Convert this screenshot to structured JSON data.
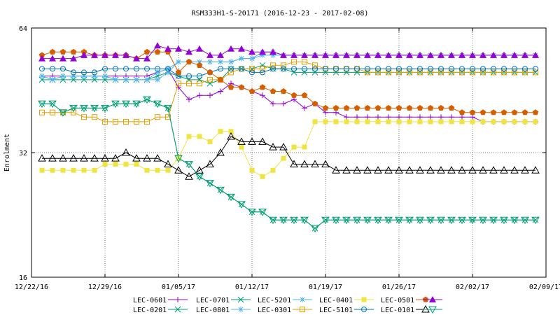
{
  "chart_data": {
    "type": "line",
    "title": "RSM333H1-S-20171 (2016-12-23 - 2017-02-08)",
    "ylabel": "Enrolment",
    "xlabel": "",
    "y_scale": "log2",
    "ylim": [
      16,
      64
    ],
    "y_ticks": [
      16,
      32,
      64
    ],
    "xlim": [
      "2016-12-22",
      "2017-02-09"
    ],
    "x_ticks": [
      "12/22/16",
      "12/29/16",
      "01/05/17",
      "01/12/17",
      "01/19/17",
      "01/26/17",
      "02/02/17",
      "02/09/17"
    ],
    "grid": true,
    "legend_position": "bottom",
    "x": [
      "2016-12-23",
      "2016-12-24",
      "2016-12-25",
      "2016-12-26",
      "2016-12-27",
      "2016-12-28",
      "2016-12-29",
      "2016-12-30",
      "2016-12-31",
      "2017-01-01",
      "2017-01-02",
      "2017-01-03",
      "2017-01-04",
      "2017-01-05",
      "2017-01-06",
      "2017-01-07",
      "2017-01-08",
      "2017-01-09",
      "2017-01-10",
      "2017-01-11",
      "2017-01-12",
      "2017-01-13",
      "2017-01-14",
      "2017-01-15",
      "2017-01-16",
      "2017-01-17",
      "2017-01-18",
      "2017-01-19",
      "2017-01-20",
      "2017-01-21",
      "2017-01-22",
      "2017-01-23",
      "2017-01-24",
      "2017-01-25",
      "2017-01-26",
      "2017-01-27",
      "2017-01-28",
      "2017-01-29",
      "2017-01-30",
      "2017-01-31",
      "2017-02-01",
      "2017-02-02",
      "2017-02-03",
      "2017-02-04",
      "2017-02-05",
      "2017-02-06",
      "2017-02-07",
      "2017-02-08"
    ],
    "series": [
      {
        "name": "LEC-0601",
        "color": "#9400d3",
        "marker": "plus",
        "values": [
          49,
          49,
          49,
          49,
          49,
          49,
          49,
          49,
          49,
          49,
          49,
          50,
          51,
          46,
          43,
          44,
          44,
          45,
          47,
          46,
          45,
          44,
          42,
          42,
          43,
          41,
          42,
          40,
          40,
          39,
          39,
          39,
          39,
          39,
          39,
          39,
          39,
          39,
          39,
          39,
          39,
          39,
          38,
          38,
          38,
          38,
          38,
          38
        ]
      },
      {
        "name": "LEC-0201",
        "color": "#009e73",
        "marker": "x",
        "values": [
          48,
          48,
          48,
          48,
          48,
          48,
          48,
          48,
          48,
          48,
          48,
          49,
          50,
          49,
          48,
          48,
          47,
          48,
          51,
          51,
          51,
          52,
          51,
          51,
          50,
          50,
          50,
          50,
          50,
          50,
          50,
          50,
          50,
          50,
          50,
          50,
          50,
          50,
          50,
          50,
          50,
          50,
          50,
          50,
          50,
          50,
          50,
          50
        ]
      },
      {
        "name": "LEC-0701",
        "color": "#009e73",
        "marker": "x",
        "values": [
          42,
          42,
          40,
          41,
          41,
          41,
          41,
          42,
          42,
          42,
          43,
          42,
          41,
          31,
          30,
          28,
          27,
          26,
          25,
          24,
          23,
          23,
          22,
          22,
          22,
          22,
          21,
          22,
          22,
          22,
          22,
          22,
          22,
          22,
          22,
          22,
          22,
          22,
          22,
          22,
          22,
          22,
          22,
          22,
          22,
          22,
          22,
          22
        ]
      },
      {
        "name": "LEC-0801",
        "color": "#56b4e9",
        "marker": "asterisk",
        "values": [
          49,
          48,
          49,
          49,
          49,
          49,
          49,
          48,
          48,
          48,
          48,
          50,
          51,
          53,
          53,
          53,
          53,
          53,
          53,
          54,
          54,
          55,
          55,
          55,
          55,
          55,
          55,
          55,
          55,
          55,
          55,
          55,
          55,
          55,
          55,
          55,
          55,
          55,
          55,
          55,
          55,
          55,
          55,
          55,
          55,
          55,
          55,
          55
        ]
      },
      {
        "name": "LEC-5201",
        "color": "#56b4e9",
        "marker": "asterisk",
        "values": [
          49,
          48,
          49,
          49,
          49,
          49,
          49,
          48,
          48,
          48,
          48,
          48,
          50,
          53,
          53,
          53,
          53,
          53,
          53,
          54,
          54,
          56,
          56,
          55,
          55,
          55,
          55,
          55,
          55,
          55,
          55,
          55,
          55,
          55,
          55,
          55,
          55,
          55,
          55,
          55,
          55,
          55,
          55,
          55,
          55,
          55,
          55,
          55
        ]
      },
      {
        "name": "LEC-0301",
        "color": "#e69f00",
        "marker": "square-open",
        "values": [
          40,
          40,
          40,
          40,
          39,
          39,
          38,
          38,
          38,
          38,
          38,
          39,
          39,
          47,
          47,
          47,
          48,
          48,
          50,
          51,
          51,
          51,
          52,
          52,
          53,
          53,
          52,
          51,
          51,
          51,
          51,
          50,
          50,
          50,
          50,
          50,
          50,
          50,
          50,
          50,
          50,
          50,
          50,
          50,
          50,
          50,
          50,
          50
        ]
      },
      {
        "name": "LEC-0401",
        "color": "#f0e442",
        "marker": "square-filled",
        "values": [
          29,
          29,
          29,
          29,
          29,
          29,
          30,
          30,
          30,
          30,
          29,
          29,
          29,
          31,
          35,
          35,
          34,
          36,
          36,
          33,
          29,
          28,
          29,
          31,
          33,
          33,
          38,
          38,
          38,
          38,
          38,
          38,
          38,
          38,
          38,
          38,
          38,
          38,
          38,
          38,
          38,
          38,
          38,
          38,
          38,
          38,
          38,
          38
        ]
      },
      {
        "name": "LEC-5101",
        "color": "#0072b2",
        "marker": "circle-open",
        "values": [
          51,
          51,
          51,
          50,
          50,
          50,
          51,
          51,
          51,
          51,
          51,
          51,
          51,
          49,
          49,
          49,
          50,
          51,
          51,
          51,
          50,
          50,
          51,
          51,
          51,
          51,
          51,
          51,
          51,
          51,
          51,
          51,
          51,
          51,
          51,
          51,
          51,
          51,
          51,
          51,
          51,
          51,
          51,
          51,
          51,
          51,
          51,
          51
        ]
      },
      {
        "name": "LEC-0501",
        "color": "#d55e00",
        "marker": "pentagon-filled",
        "values": [
          55,
          56,
          56,
          56,
          56,
          55,
          55,
          55,
          55,
          54,
          56,
          56,
          56,
          50,
          53,
          52,
          50,
          48,
          46,
          46,
          45,
          46,
          45,
          45,
          44,
          44,
          42,
          41,
          41,
          41,
          41,
          41,
          41,
          41,
          41,
          41,
          41,
          41,
          41,
          41,
          40,
          40,
          40,
          40,
          40,
          40,
          40,
          40
        ]
      },
      {
        "name": "LEC-0101",
        "color": "#000000",
        "marker": "triangle-up-open",
        "values": [
          31,
          31,
          31,
          31,
          31,
          31,
          31,
          31,
          32,
          31,
          31,
          31,
          30,
          29,
          28,
          29,
          30,
          32,
          35,
          34,
          34,
          34,
          33,
          33,
          30,
          30,
          30,
          30,
          29,
          29,
          29,
          29,
          29,
          29,
          29,
          29,
          29,
          29,
          29,
          29,
          29,
          29,
          29,
          29,
          29,
          29,
          29,
          29
        ]
      },
      {
        "name": "",
        "color": "#9400d3",
        "marker": "triangle-up-filled",
        "values": [
          54,
          54,
          54,
          54,
          55,
          55,
          55,
          55,
          55,
          54,
          54,
          58,
          57,
          57,
          56,
          57,
          55,
          55,
          57,
          57,
          56,
          56,
          56,
          55,
          55,
          55,
          55,
          55,
          55,
          55,
          55,
          55,
          55,
          55,
          55,
          55,
          55,
          55,
          55,
          55,
          55,
          55,
          55,
          55,
          55,
          55,
          55,
          55
        ]
      },
      {
        "name": "",
        "color": "#009e73",
        "marker": "triangle-down-open",
        "values": [
          42,
          42,
          40,
          41,
          41,
          41,
          41,
          42,
          42,
          42,
          43,
          42,
          41,
          31,
          30,
          28,
          27,
          26,
          25,
          24,
          23,
          23,
          22,
          22,
          22,
          22,
          21,
          22,
          22,
          22,
          22,
          22,
          22,
          22,
          22,
          22,
          22,
          22,
          22,
          22,
          22,
          22,
          22,
          22,
          22,
          22,
          22,
          22
        ]
      }
    ],
    "legend": [
      {
        "label": "LEC-0601",
        "color": "#9400d3",
        "marker": "plus"
      },
      {
        "label": "LEC-0701",
        "color": "#009e73",
        "marker": "x"
      },
      {
        "label": "LEC-5201",
        "color": "#56b4e9",
        "marker": "asterisk"
      },
      {
        "label": "LEC-0401",
        "color": "#f0e442",
        "marker": "square-filled"
      },
      {
        "label": "LEC-0501",
        "color": "#d55e00",
        "marker": "pentagon-filled"
      },
      {
        "label": "",
        "color": "#9400d3",
        "marker": "triangle-up-filled"
      },
      {
        "label": "LEC-0201",
        "color": "#009e73",
        "marker": "x"
      },
      {
        "label": "LEC-0801",
        "color": "#56b4e9",
        "marker": "asterisk"
      },
      {
        "label": "LEC-0301",
        "color": "#e69f00",
        "marker": "square-open"
      },
      {
        "label": "LEC-5101",
        "color": "#0072b2",
        "marker": "circle-open"
      },
      {
        "label": "LEC-0101",
        "color": "#000000",
        "marker": "triangle-up-open"
      },
      {
        "label": "",
        "color": "#009e73",
        "marker": "triangle-down-open"
      }
    ]
  }
}
